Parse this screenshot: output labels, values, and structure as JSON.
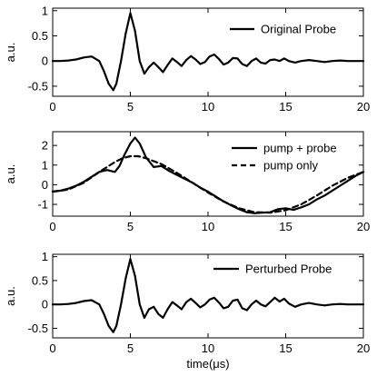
{
  "chart_data": [
    {
      "type": "line",
      "xlabel": "",
      "ylabel": "a.u.",
      "xlim": [
        0,
        20
      ],
      "ylim": [
        -0.7,
        1.05
      ],
      "xticks": [
        "0",
        "5",
        "10",
        "15",
        "20"
      ],
      "yticks": [
        "-0.5",
        "0",
        "0.5",
        "1"
      ],
      "ytick_values": [
        -0.5,
        0,
        0.5,
        1
      ],
      "legend_position": "top-right",
      "series": [
        {
          "name": "Original Probe",
          "style": "solid",
          "x": [
            0,
            0.5,
            1,
            1.5,
            2,
            2.5,
            3,
            3.3,
            3.6,
            3.9,
            4.1,
            4.4,
            4.7,
            5.0,
            5.3,
            5.6,
            5.9,
            6.2,
            6.5,
            6.8,
            7.1,
            7.4,
            7.7,
            8.0,
            8.3,
            8.6,
            8.9,
            9.2,
            9.5,
            9.8,
            10.1,
            10.4,
            10.7,
            11.0,
            11.3,
            11.6,
            11.9,
            12.2,
            12.5,
            12.8,
            13.1,
            13.4,
            13.7,
            14.0,
            14.3,
            14.6,
            14.9,
            15.2,
            15.6,
            16.0,
            16.5,
            17,
            17.5,
            18,
            18.5,
            19,
            19.5,
            20
          ],
          "y": [
            0,
            0,
            0.01,
            0.03,
            0.07,
            0.09,
            0.0,
            -0.2,
            -0.45,
            -0.58,
            -0.45,
            0.0,
            0.55,
            0.95,
            0.6,
            0.0,
            -0.25,
            -0.12,
            -0.03,
            -0.12,
            -0.22,
            -0.08,
            0.05,
            -0.02,
            -0.1,
            0.02,
            0.1,
            0.03,
            -0.06,
            -0.02,
            0.09,
            0.13,
            0.04,
            -0.07,
            -0.03,
            0.06,
            0.05,
            -0.06,
            -0.1,
            0.0,
            0.05,
            -0.03,
            -0.05,
            0.02,
            0.03,
            0.0,
            0.05,
            0.0,
            -0.03,
            0.0,
            0.02,
            0.0,
            -0.02,
            0.0,
            0.01,
            0.0,
            0.0,
            0.0
          ]
        }
      ]
    },
    {
      "type": "line",
      "xlabel": "",
      "ylabel": "a.u.",
      "xlim": [
        0,
        20
      ],
      "ylim": [
        -1.6,
        2.7
      ],
      "xticks": [
        "0",
        "5",
        "10",
        "15",
        "20"
      ],
      "yticks": [
        "-1",
        "0",
        "1",
        "2"
      ],
      "ytick_values": [
        -1,
        0,
        1,
        2
      ],
      "legend_position": "top-right",
      "series": [
        {
          "name": "pump + probe",
          "style": "solid",
          "x": [
            0,
            0.5,
            1,
            1.5,
            2,
            2.5,
            3,
            3.5,
            4,
            4.3,
            4.6,
            5.0,
            5.3,
            5.6,
            6.0,
            6.5,
            7,
            7.5,
            8,
            8.5,
            9,
            9.5,
            10,
            10.5,
            11,
            11.5,
            12,
            12.5,
            13,
            13.5,
            14,
            14.5,
            15,
            15.5,
            16,
            16.5,
            17,
            17.5,
            18,
            18.5,
            19,
            19.5,
            20
          ],
          "y": [
            -0.35,
            -0.3,
            -0.2,
            -0.05,
            0.15,
            0.4,
            0.65,
            0.75,
            0.65,
            0.95,
            1.5,
            2.1,
            2.4,
            2.1,
            1.4,
            0.9,
            0.95,
            0.7,
            0.5,
            0.3,
            0.1,
            -0.15,
            -0.35,
            -0.6,
            -0.85,
            -1.05,
            -1.25,
            -1.4,
            -1.45,
            -1.42,
            -1.4,
            -1.25,
            -1.2,
            -1.28,
            -1.15,
            -1.0,
            -0.75,
            -0.55,
            -0.3,
            -0.05,
            0.2,
            0.45,
            0.65
          ]
        },
        {
          "name": "pump only",
          "style": "dashed",
          "x": [
            0,
            1,
            2,
            3,
            4,
            4.5,
            5,
            5.5,
            6,
            7,
            8,
            9,
            10,
            11,
            12,
            13,
            14,
            15,
            16,
            17,
            18,
            19,
            20
          ],
          "y": [
            -0.35,
            -0.25,
            0.1,
            0.65,
            1.15,
            1.35,
            1.45,
            1.45,
            1.35,
            1.05,
            0.6,
            0.1,
            -0.4,
            -0.85,
            -1.2,
            -1.4,
            -1.42,
            -1.3,
            -1.0,
            -0.55,
            -0.05,
            0.35,
            0.65
          ]
        }
      ]
    },
    {
      "type": "line",
      "xlabel": "time(μs)",
      "ylabel": "a.u.",
      "xlim": [
        0,
        20
      ],
      "ylim": [
        -0.7,
        1.05
      ],
      "xticks": [
        "0",
        "5",
        "10",
        "15",
        "20"
      ],
      "yticks": [
        "-0.5",
        "0",
        "0.5",
        "1"
      ],
      "ytick_values": [
        -0.5,
        0,
        0.5,
        1
      ],
      "legend_position": "top-right",
      "series": [
        {
          "name": "Perturbed Probe",
          "style": "solid",
          "x": [
            0,
            0.5,
            1,
            1.5,
            2,
            2.5,
            3,
            3.3,
            3.6,
            3.9,
            4.1,
            4.4,
            4.7,
            5.0,
            5.3,
            5.6,
            5.9,
            6.2,
            6.5,
            6.8,
            7.1,
            7.4,
            7.7,
            8.0,
            8.3,
            8.6,
            8.9,
            9.2,
            9.5,
            9.8,
            10.1,
            10.4,
            10.7,
            11.0,
            11.3,
            11.6,
            11.9,
            12.2,
            12.5,
            12.8,
            13.1,
            13.4,
            13.7,
            14.0,
            14.3,
            14.6,
            14.9,
            15.2,
            15.6,
            16.0,
            16.5,
            17,
            17.5,
            18,
            18.5,
            19,
            19.5,
            20
          ],
          "y": [
            0,
            0,
            0.01,
            0.03,
            0.07,
            0.09,
            0.0,
            -0.2,
            -0.45,
            -0.58,
            -0.45,
            0.0,
            0.55,
            0.95,
            0.6,
            0.0,
            -0.28,
            -0.1,
            -0.05,
            -0.2,
            -0.28,
            -0.1,
            0.05,
            -0.02,
            -0.1,
            0.05,
            0.12,
            0.03,
            -0.06,
            0.0,
            0.1,
            0.14,
            0.04,
            -0.08,
            -0.05,
            0.08,
            0.1,
            -0.08,
            -0.12,
            0.0,
            0.08,
            0.0,
            -0.04,
            0.05,
            0.14,
            0.06,
            0.12,
            0.02,
            -0.05,
            0.0,
            0.03,
            0.0,
            -0.02,
            0.0,
            0.01,
            0.0,
            0.0,
            0.0
          ]
        }
      ]
    }
  ]
}
